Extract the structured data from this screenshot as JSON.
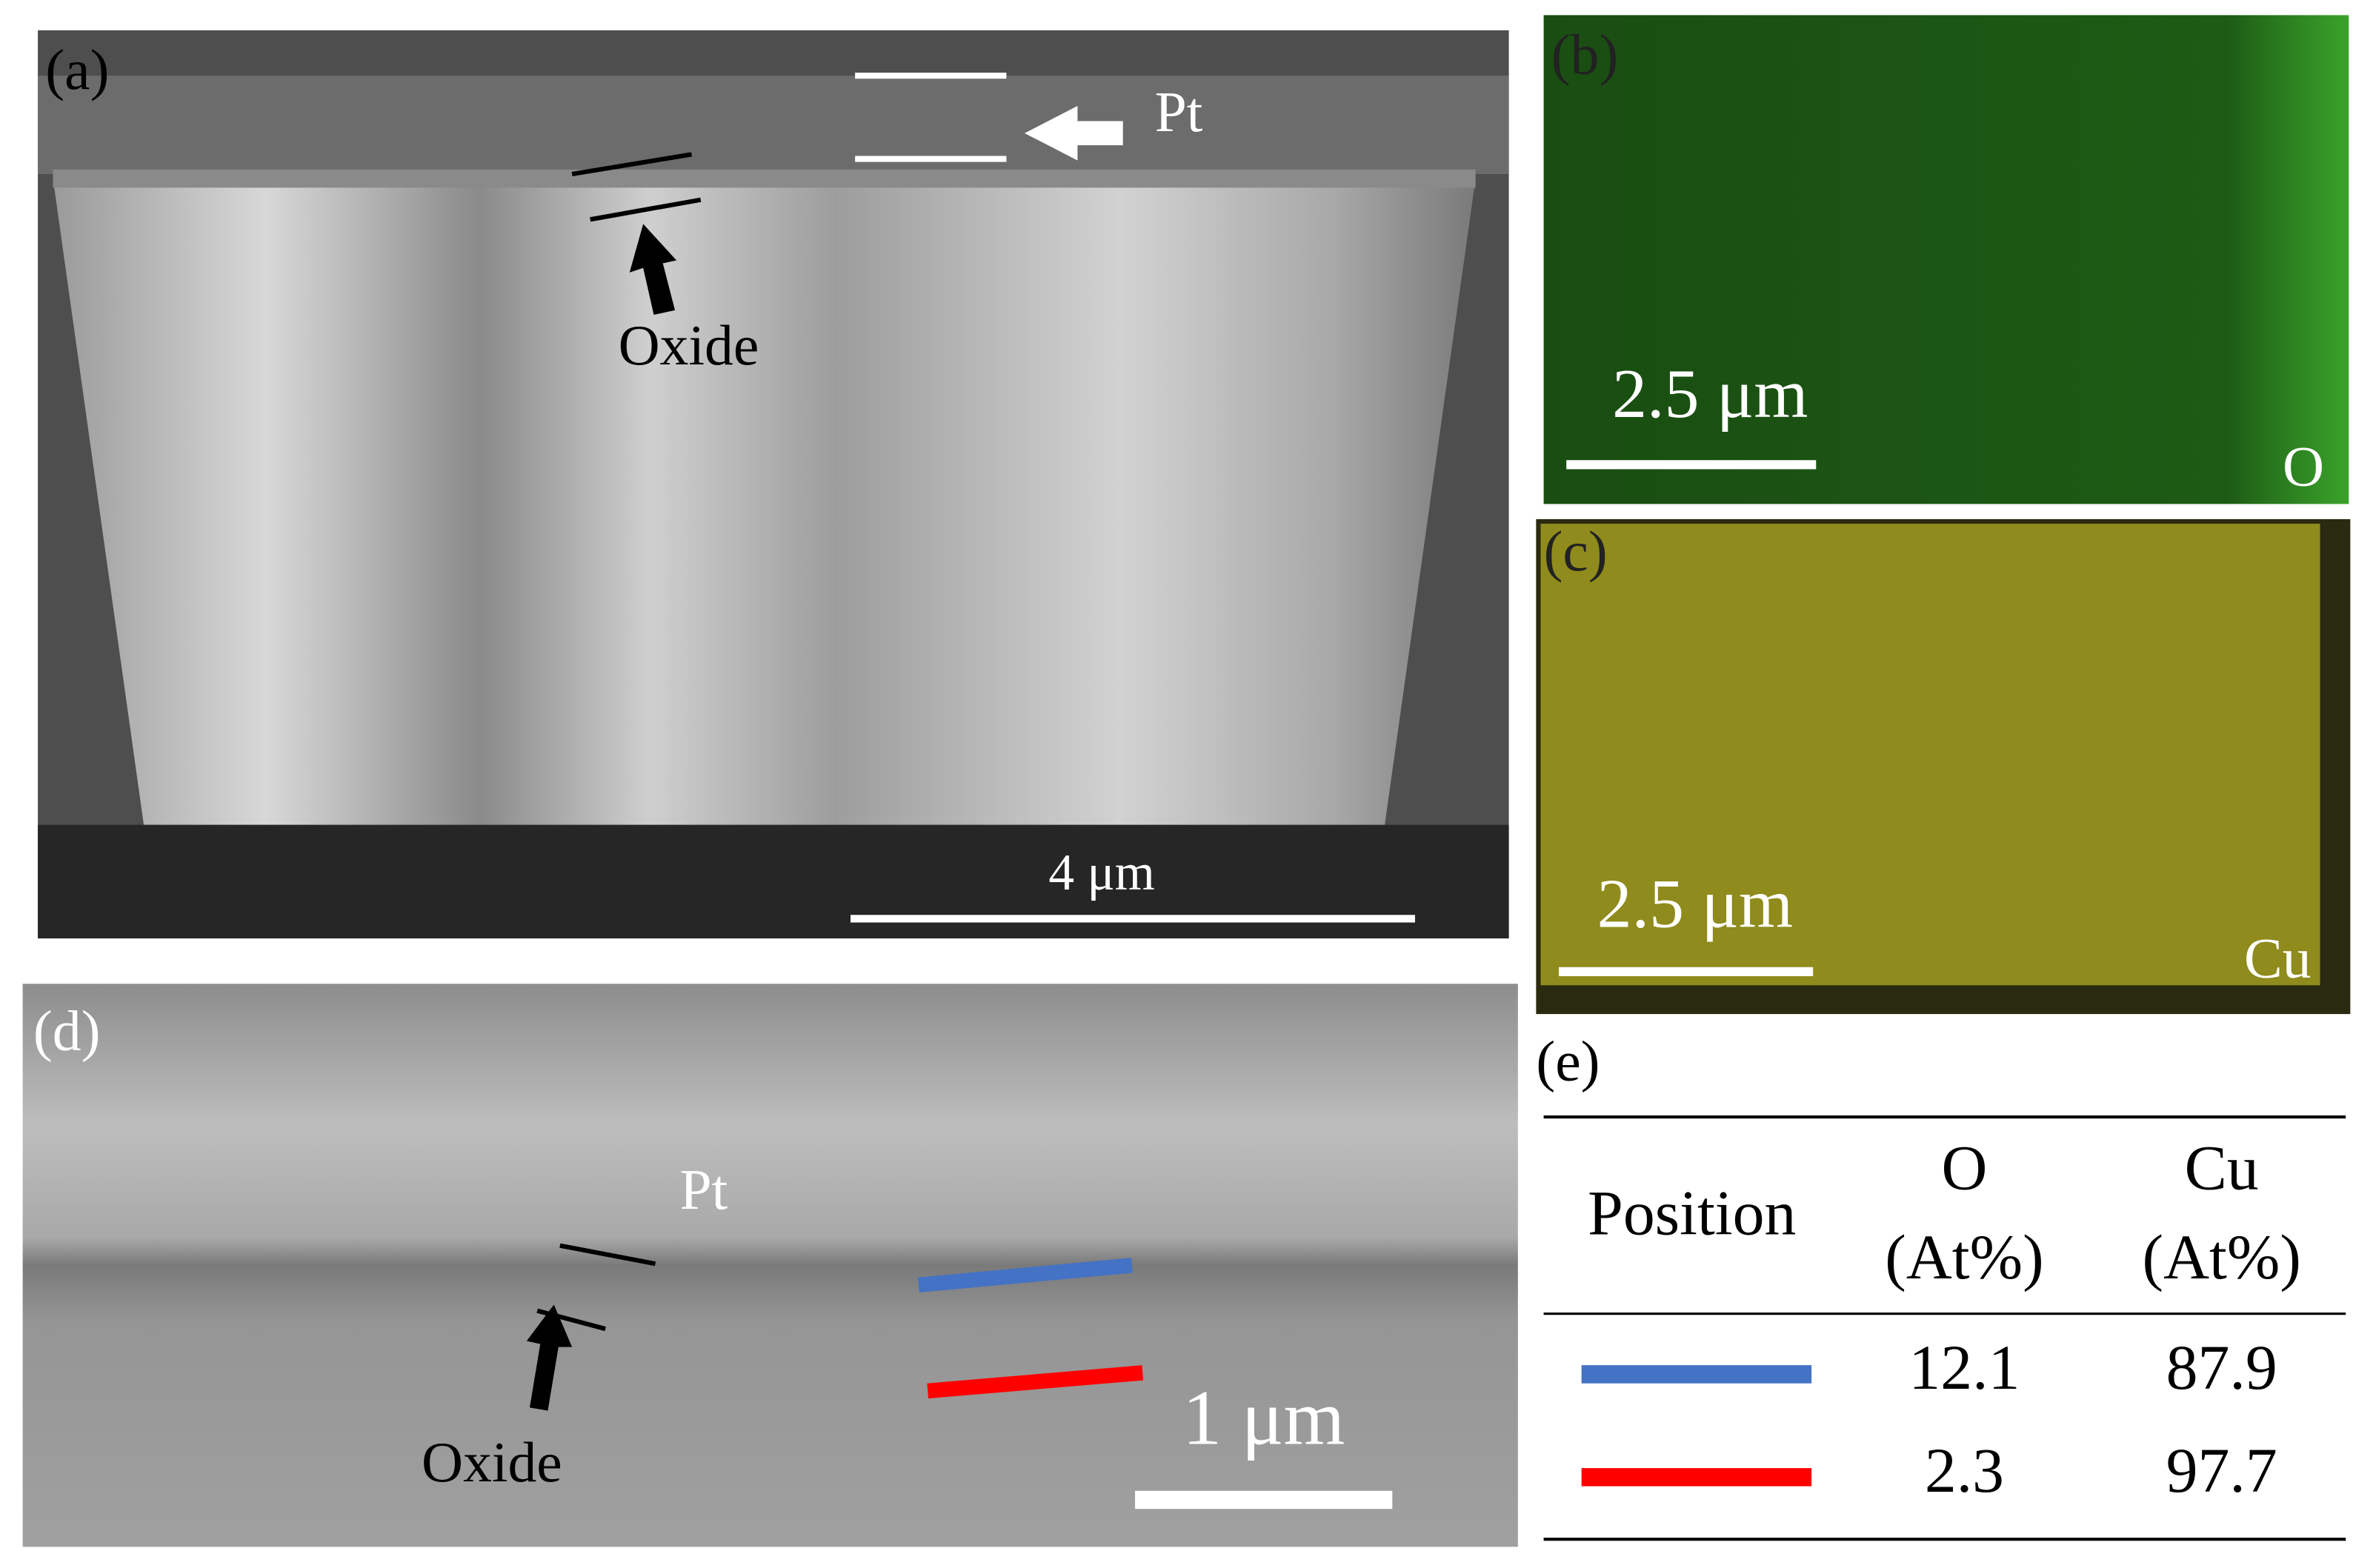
{
  "panels": {
    "a": {
      "label": "(a)",
      "layer": "Pt",
      "oxide": "Oxide",
      "scale_bar": "4 μm"
    },
    "b": {
      "label": "(b)",
      "element": "O",
      "scale_bar": "2.5 μm",
      "color": "#1f5a16"
    },
    "c": {
      "label": "(c)",
      "element": "Cu",
      "scale_bar": "2.5 μm",
      "color": "#8f8b1c"
    },
    "d": {
      "label": "(d)",
      "layer": "Pt",
      "oxide": "Oxide",
      "scale_bar": "1 μm"
    }
  },
  "table": {
    "label": "(e)",
    "header": {
      "position": "Position",
      "columns": [
        [
          "O",
          "(At%)"
        ],
        [
          "Cu",
          "(At%)"
        ]
      ]
    },
    "rows": [
      {
        "color": "#4472c4",
        "values": [
          12.1,
          87.9
        ]
      },
      {
        "color": "#ff0000",
        "values": [
          2.3,
          97.7
        ]
      }
    ]
  }
}
